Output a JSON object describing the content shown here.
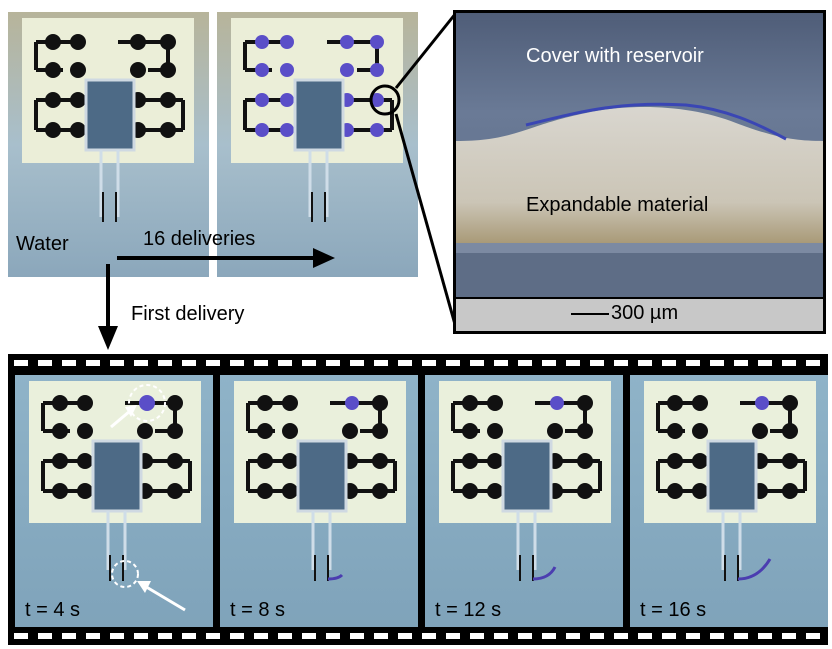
{
  "top_row": {
    "label_water": "Water",
    "label_deliveries": "16 deliveries",
    "label_first_delivery": "First delivery"
  },
  "inset": {
    "label_cover": "Cover with reservoir",
    "label_material": "Expandable material",
    "scale_text": "300 µm"
  },
  "filmstrip": {
    "frames": [
      {
        "time": "t = 4 s"
      },
      {
        "time": "t = 8 s"
      },
      {
        "time": "t = 12 s"
      },
      {
        "time": "t = 16 s"
      }
    ]
  },
  "colors": {
    "ink": "#000000",
    "dye_blue": "#5a4ec8",
    "board": "#e9ecd9",
    "background_blue": "#8fb0c6"
  }
}
